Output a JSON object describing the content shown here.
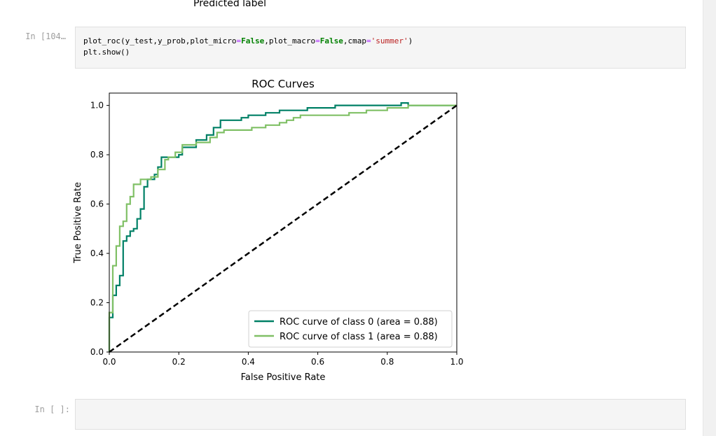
{
  "prev_output": {
    "xlabel_tail": "Predicted label"
  },
  "cells": [
    {
      "prompt": "In [104…",
      "code_line1": {
        "t1": "plot_roc(y_test,y_prob,plot_micro",
        "t2": "=",
        "t3": "False",
        "t4": ",plot_macro",
        "t5": "=",
        "t6": "False",
        "t7": ",cmap",
        "t8": "=",
        "t9": "'summer'",
        "t10": ")"
      },
      "code_line2": "plt.show()"
    },
    {
      "prompt": "In [ ]:"
    }
  ],
  "chart_data": {
    "type": "line",
    "title": "ROC Curves",
    "xlabel": "False Positive Rate",
    "ylabel": "True Positive Rate",
    "xlim": [
      0.0,
      1.0
    ],
    "ylim": [
      0.0,
      1.05
    ],
    "xticks": [
      "0.0",
      "0.2",
      "0.4",
      "0.6",
      "0.8",
      "1.0"
    ],
    "yticks": [
      "0.0",
      "0.2",
      "0.4",
      "0.6",
      "0.8",
      "1.0"
    ],
    "legend_placement": "lower-right",
    "series": [
      {
        "name": "ROC curve of class 0 (area = 0.88)",
        "color": "#008066",
        "points": [
          [
            0,
            0
          ],
          [
            0,
            0.14
          ],
          [
            0.01,
            0.14
          ],
          [
            0.01,
            0.23
          ],
          [
            0.02,
            0.23
          ],
          [
            0.02,
            0.27
          ],
          [
            0.03,
            0.27
          ],
          [
            0.03,
            0.31
          ],
          [
            0.04,
            0.31
          ],
          [
            0.04,
            0.45
          ],
          [
            0.05,
            0.45
          ],
          [
            0.05,
            0.47
          ],
          [
            0.06,
            0.47
          ],
          [
            0.06,
            0.49
          ],
          [
            0.07,
            0.49
          ],
          [
            0.07,
            0.5
          ],
          [
            0.08,
            0.5
          ],
          [
            0.08,
            0.54
          ],
          [
            0.09,
            0.54
          ],
          [
            0.09,
            0.58
          ],
          [
            0.1,
            0.58
          ],
          [
            0.1,
            0.67
          ],
          [
            0.11,
            0.67
          ],
          [
            0.11,
            0.7
          ],
          [
            0.13,
            0.7
          ],
          [
            0.13,
            0.72
          ],
          [
            0.14,
            0.72
          ],
          [
            0.14,
            0.75
          ],
          [
            0.15,
            0.75
          ],
          [
            0.15,
            0.79
          ],
          [
            0.2,
            0.79
          ],
          [
            0.2,
            0.8
          ],
          [
            0.21,
            0.8
          ],
          [
            0.21,
            0.83
          ],
          [
            0.25,
            0.83
          ],
          [
            0.25,
            0.86
          ],
          [
            0.28,
            0.86
          ],
          [
            0.28,
            0.88
          ],
          [
            0.3,
            0.88
          ],
          [
            0.3,
            0.91
          ],
          [
            0.32,
            0.91
          ],
          [
            0.32,
            0.94
          ],
          [
            0.38,
            0.94
          ],
          [
            0.38,
            0.95
          ],
          [
            0.4,
            0.95
          ],
          [
            0.4,
            0.96
          ],
          [
            0.45,
            0.96
          ],
          [
            0.45,
            0.97
          ],
          [
            0.49,
            0.97
          ],
          [
            0.49,
            0.98
          ],
          [
            0.57,
            0.98
          ],
          [
            0.57,
            0.99
          ],
          [
            0.65,
            0.99
          ],
          [
            0.65,
            0.99
          ],
          [
            0.65,
            1.0
          ],
          [
            0.84,
            1.0
          ],
          [
            0.84,
            1.0
          ],
          [
            0.84,
            1.01
          ],
          [
            0.86,
            1.01
          ],
          [
            0.86,
            1.0
          ],
          [
            1.0,
            1.0
          ]
        ]
      },
      {
        "name": "ROC curve of class 1 (area = 0.88)",
        "color": "#80c066",
        "points": [
          [
            0,
            0
          ],
          [
            0,
            0.16
          ],
          [
            0.01,
            0.16
          ],
          [
            0.01,
            0.35
          ],
          [
            0.02,
            0.35
          ],
          [
            0.02,
            0.43
          ],
          [
            0.03,
            0.43
          ],
          [
            0.03,
            0.51
          ],
          [
            0.04,
            0.51
          ],
          [
            0.04,
            0.53
          ],
          [
            0.05,
            0.53
          ],
          [
            0.05,
            0.6
          ],
          [
            0.06,
            0.6
          ],
          [
            0.06,
            0.63
          ],
          [
            0.07,
            0.63
          ],
          [
            0.07,
            0.68
          ],
          [
            0.09,
            0.68
          ],
          [
            0.09,
            0.7
          ],
          [
            0.12,
            0.7
          ],
          [
            0.12,
            0.71
          ],
          [
            0.14,
            0.71
          ],
          [
            0.14,
            0.74
          ],
          [
            0.16,
            0.74
          ],
          [
            0.16,
            0.78
          ],
          [
            0.17,
            0.78
          ],
          [
            0.17,
            0.79
          ],
          [
            0.19,
            0.79
          ],
          [
            0.19,
            0.81
          ],
          [
            0.21,
            0.81
          ],
          [
            0.21,
            0.84
          ],
          [
            0.25,
            0.84
          ],
          [
            0.25,
            0.85
          ],
          [
            0.29,
            0.85
          ],
          [
            0.29,
            0.87
          ],
          [
            0.31,
            0.87
          ],
          [
            0.31,
            0.89
          ],
          [
            0.33,
            0.89
          ],
          [
            0.33,
            0.9
          ],
          [
            0.41,
            0.9
          ],
          [
            0.41,
            0.91
          ],
          [
            0.45,
            0.91
          ],
          [
            0.45,
            0.92
          ],
          [
            0.49,
            0.92
          ],
          [
            0.49,
            0.93
          ],
          [
            0.51,
            0.93
          ],
          [
            0.51,
            0.94
          ],
          [
            0.53,
            0.94
          ],
          [
            0.53,
            0.95
          ],
          [
            0.55,
            0.95
          ],
          [
            0.55,
            0.96
          ],
          [
            0.69,
            0.96
          ],
          [
            0.69,
            0.97
          ],
          [
            0.74,
            0.97
          ],
          [
            0.74,
            0.98
          ],
          [
            0.8,
            0.98
          ],
          [
            0.8,
            0.99
          ],
          [
            0.86,
            0.99
          ],
          [
            0.86,
            1.0
          ],
          [
            1.0,
            1.0
          ]
        ]
      },
      {
        "name": "",
        "color": "#000000",
        "dashed": true,
        "points": [
          [
            0,
            0
          ],
          [
            1,
            1
          ]
        ]
      }
    ]
  }
}
